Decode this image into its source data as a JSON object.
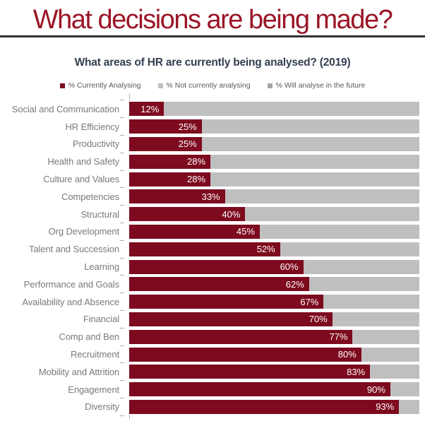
{
  "page": {
    "title": "What decisions are being made?",
    "title_color": "#9A1527",
    "rule_color": "#333333"
  },
  "chart": {
    "title": "What areas of HR are currently being analysed? (2019)",
    "title_color": "#333F50",
    "legend": [
      {
        "label": "% Currently Analysing",
        "color": "#7D0A1E"
      },
      {
        "label": "% Not currently analysing",
        "color": "#BFBFBF"
      },
      {
        "label": "% Will analyse in the future",
        "color": "#A6A6A6"
      }
    ]
  },
  "chart_data": {
    "type": "bar",
    "orientation": "horizontal",
    "stacked": true,
    "title": "What areas of HR are currently being analysed? (2019)",
    "categories": [
      "Social and Communication",
      "HR Efficiency",
      "Productivity",
      "Health and Safety",
      "Culture and Values",
      "Competencies",
      "Structural",
      "Org Development",
      "Talent and Succession",
      "Learning",
      "Performance and Goals",
      "Availability and Absence",
      "Financial",
      "Comp and Ben",
      "Recruitment",
      "Mobility and Attrition",
      "Engagement",
      "Diversity"
    ],
    "series": [
      {
        "name": "% Currently Analysing",
        "color": "#7D0A1E",
        "values": [
          12,
          25,
          25,
          28,
          28,
          33,
          40,
          45,
          52,
          60,
          62,
          67,
          70,
          77,
          80,
          83,
          90,
          93
        ]
      },
      {
        "name": "% Not currently analysing",
        "color": "#BFBFBF",
        "values": [
          88,
          75,
          75,
          72,
          72,
          67,
          60,
          55,
          48,
          40,
          38,
          33,
          30,
          23,
          20,
          17,
          10,
          7
        ]
      }
    ],
    "legend_entries": [
      "% Currently Analysing",
      "% Not currently analysing",
      "% Will analyse in the future"
    ],
    "xlim": [
      0,
      100
    ],
    "grid": false,
    "legend_position": "top",
    "data_label_format": "{value}%",
    "data_labels_on": "% Currently Analysing"
  }
}
